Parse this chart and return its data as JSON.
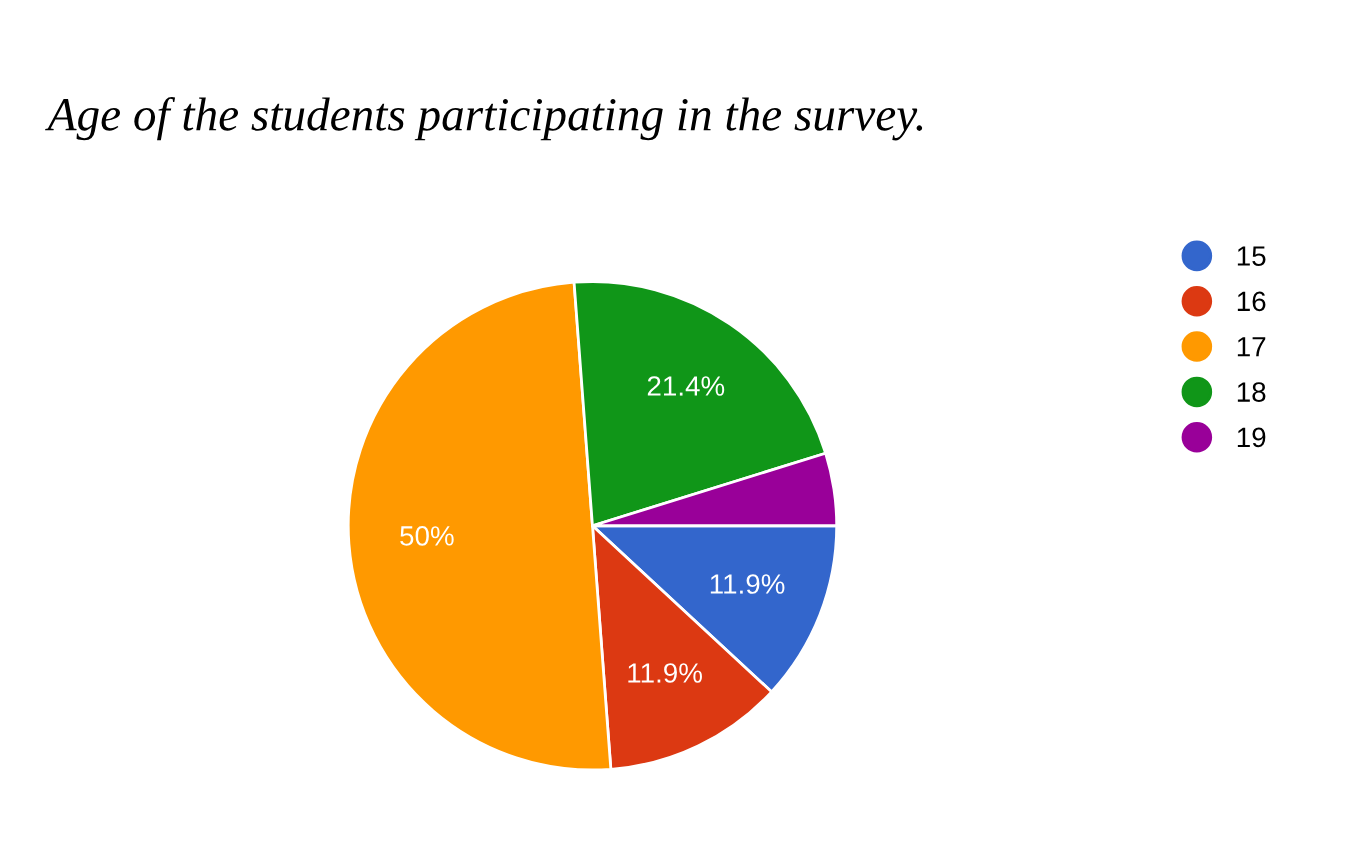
{
  "chart_data": {
    "type": "pie",
    "title": "Age of the students participating in the survey.",
    "categories": [
      "15",
      "16",
      "17",
      "18",
      "19"
    ],
    "values": [
      11.9,
      11.9,
      50,
      21.4,
      4.8
    ],
    "value_labels": [
      "11.9%",
      "11.9%",
      "50%",
      "21.4%",
      null
    ],
    "colors": [
      "#3366cc",
      "#dc3912",
      "#ff9900",
      "#109618",
      "#990099"
    ],
    "legend": "right"
  }
}
